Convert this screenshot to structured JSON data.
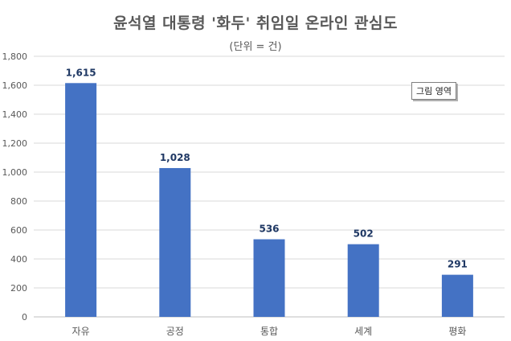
{
  "chart_data": {
    "type": "bar",
    "title": "윤석열 대통령 '화두' 취임일 온라인 관심도",
    "subtitle": "(단위 = 건)",
    "categories": [
      "자유",
      "공정",
      "통합",
      "세계",
      "평화"
    ],
    "values": [
      1615,
      1028,
      536,
      502,
      291
    ],
    "data_labels": [
      "1,615",
      "1,028",
      "536",
      "502",
      "291"
    ],
    "ylim": [
      0,
      1800
    ],
    "yticks": [
      0,
      200,
      400,
      600,
      800,
      1000,
      1200,
      1400,
      1600,
      1800
    ],
    "ytick_labels": [
      "0",
      "200",
      "400",
      "600",
      "800",
      "1,000",
      "1,200",
      "1,400",
      "1,600",
      "1,800"
    ],
    "grid": true,
    "legend": "none",
    "bar_color": "#4472C4",
    "gridline_color": "#d9d9d9",
    "label_color": "#1f3864"
  },
  "plot_area_label": "그림 영역"
}
